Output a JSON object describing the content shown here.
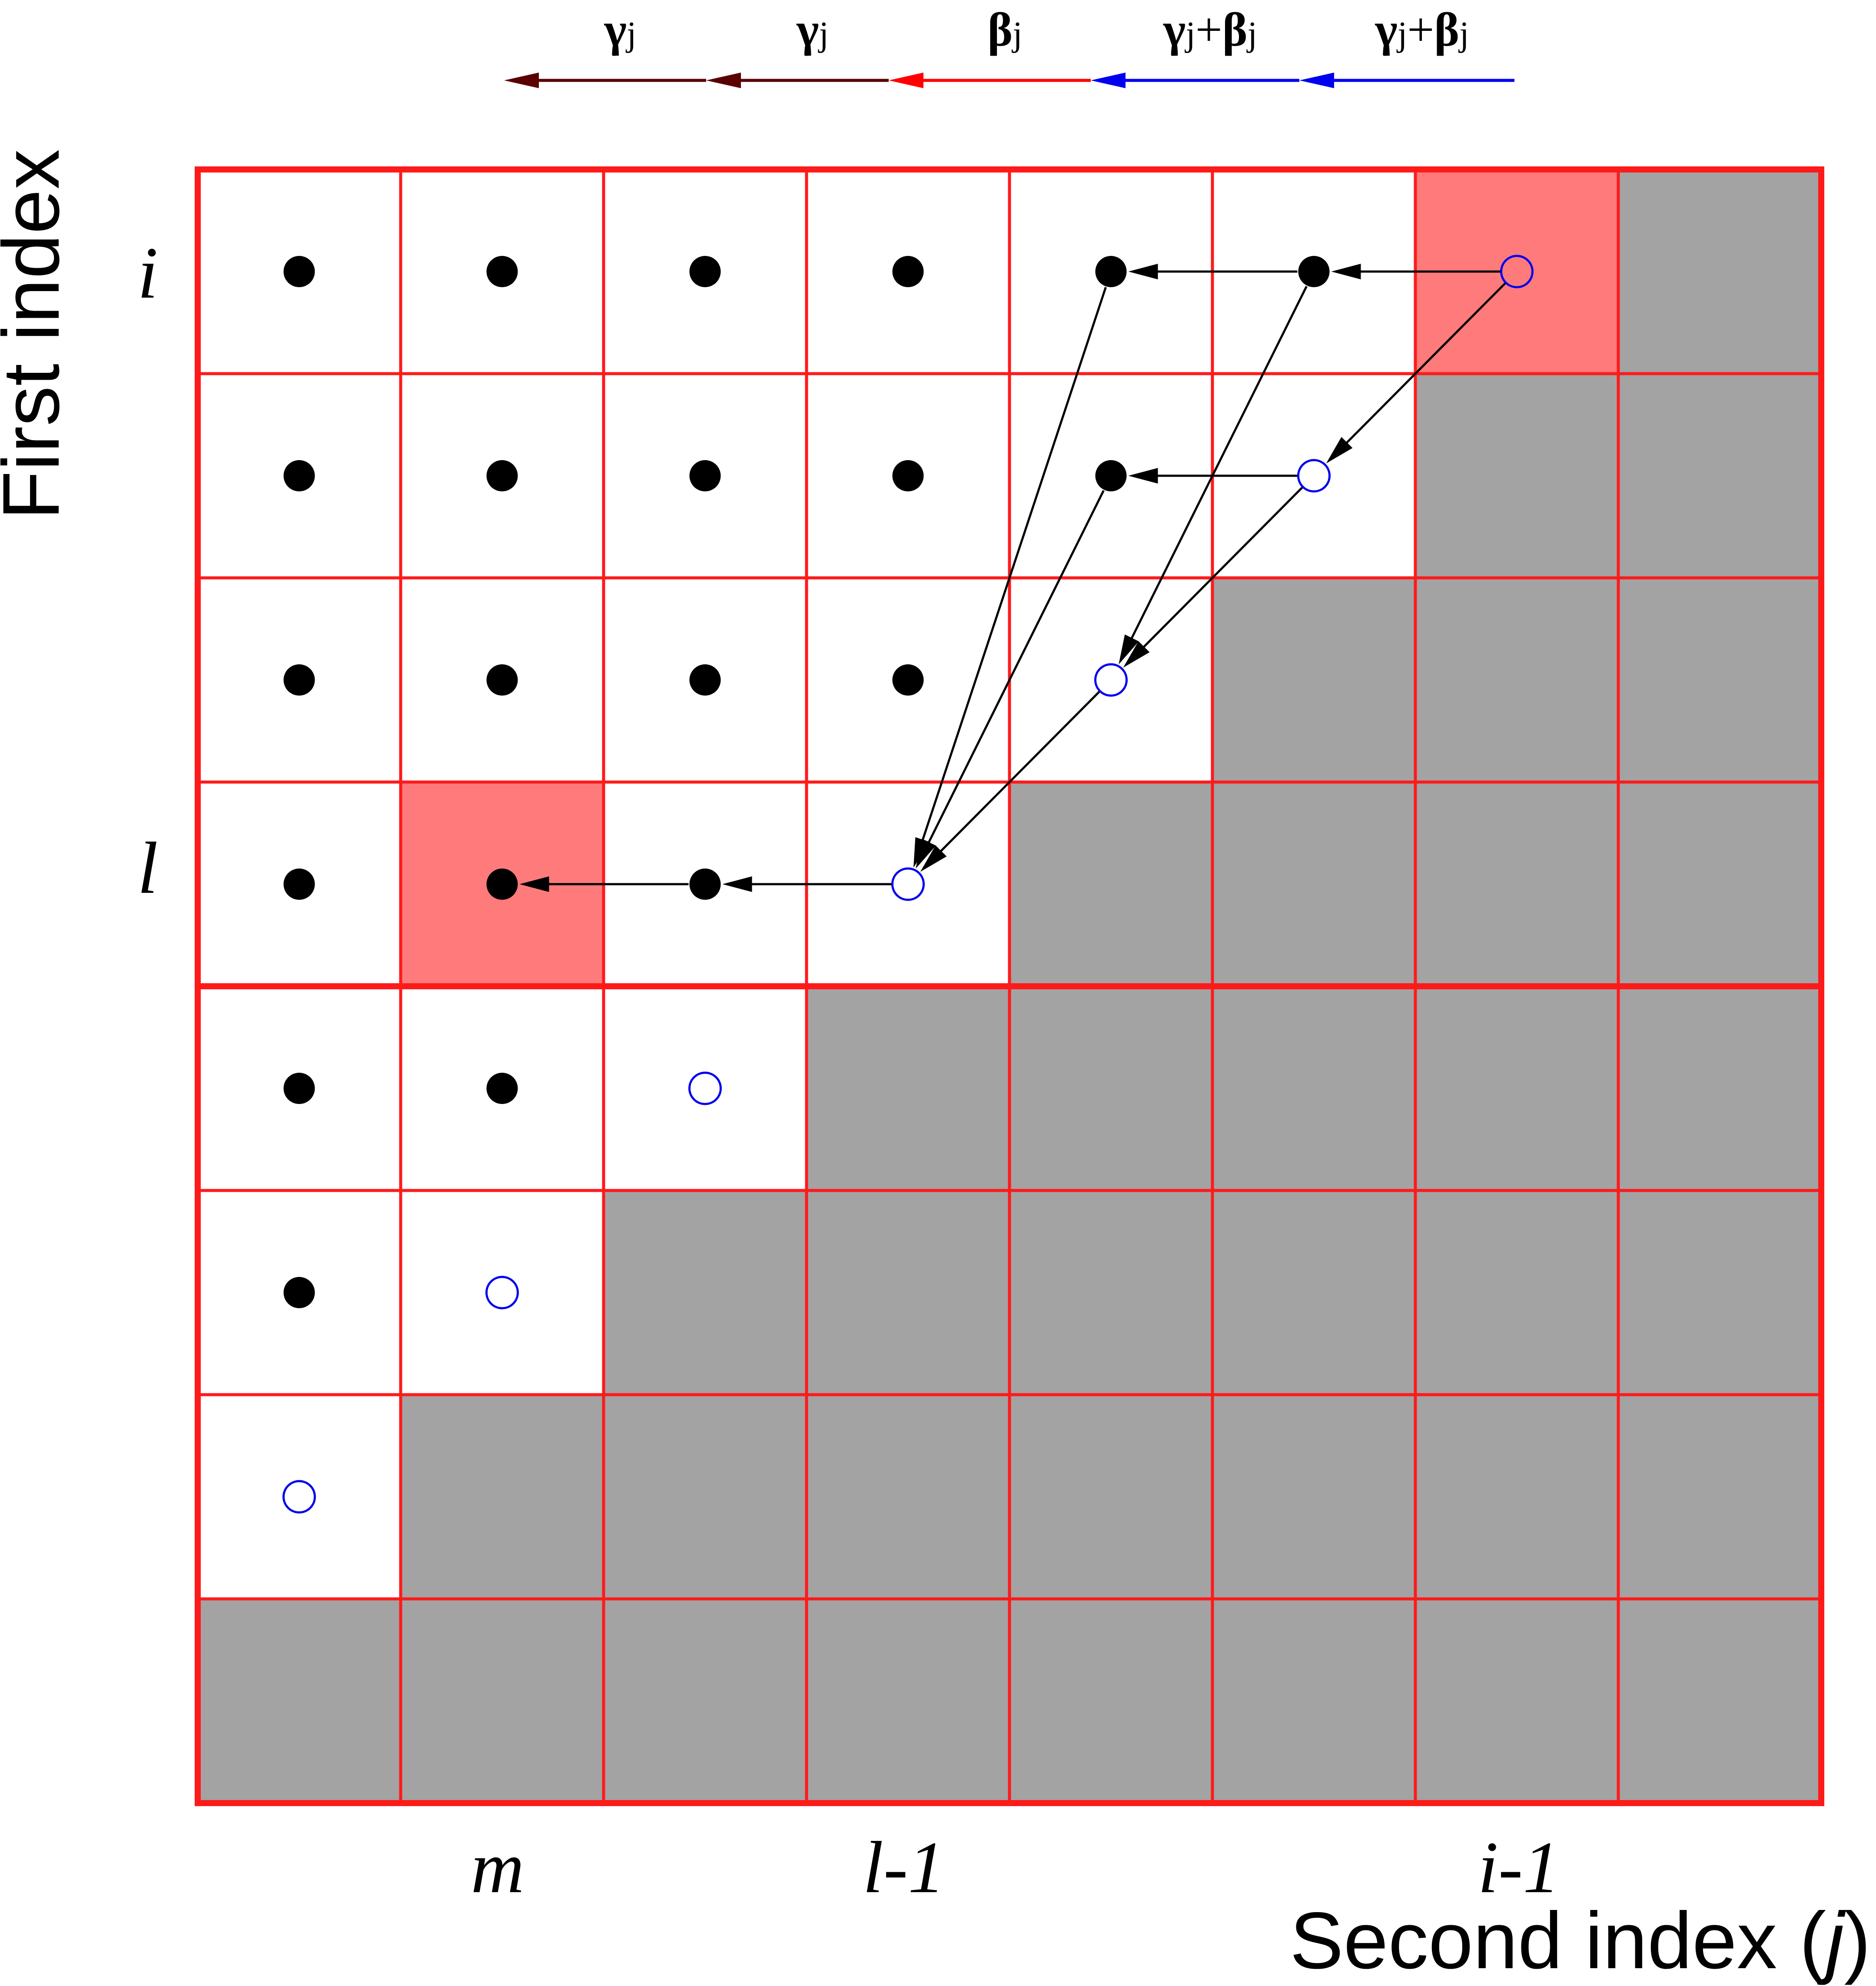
{
  "grid": {
    "rows": 8,
    "cols": 8,
    "colors": {
      "line": "#ff1a1a",
      "gray": "#a3a3a3",
      "highlight": "#ff7b7b",
      "white": "#ffffff",
      "filled_dot": "#000000",
      "open_dot": "#0000ee"
    },
    "cells": [
      [
        "filled",
        "filled",
        "filled",
        "filled",
        "filled",
        "filled",
        "open",
        "gray"
      ],
      [
        "filled",
        "filled",
        "filled",
        "filled",
        "filled",
        "open",
        "gray",
        "gray"
      ],
      [
        "filled",
        "filled",
        "filled",
        "filled",
        "open",
        "gray",
        "gray",
        "gray"
      ],
      [
        "filled",
        "filled",
        "filled",
        "open",
        "gray",
        "gray",
        "gray",
        "gray"
      ],
      [
        "filled",
        "filled",
        "open",
        "gray",
        "gray",
        "gray",
        "gray",
        "gray"
      ],
      [
        "filled",
        "open",
        "gray",
        "gray",
        "gray",
        "gray",
        "gray",
        "gray"
      ],
      [
        "open",
        "gray",
        "gray",
        "gray",
        "gray",
        "gray",
        "gray",
        "gray"
      ],
      [
        "gray",
        "gray",
        "gray",
        "gray",
        "gray",
        "gray",
        "gray",
        "gray"
      ]
    ],
    "highlighted_cells": [
      [
        0,
        6
      ],
      [
        3,
        1
      ]
    ],
    "dependency_arrows": [
      {
        "from": [
          0,
          6
        ],
        "to": [
          0,
          5
        ]
      },
      {
        "from": [
          0,
          5
        ],
        "to": [
          0,
          4
        ]
      },
      {
        "from": [
          0,
          6
        ],
        "to": [
          1,
          5
        ]
      },
      {
        "from": [
          1,
          5
        ],
        "to": [
          1,
          4
        ]
      },
      {
        "from": [
          1,
          5
        ],
        "to": [
          2,
          4
        ]
      },
      {
        "from": [
          0,
          5
        ],
        "to": [
          2,
          4
        ]
      },
      {
        "from": [
          0,
          4
        ],
        "to": [
          3,
          3
        ]
      },
      {
        "from": [
          1,
          4
        ],
        "to": [
          3,
          3
        ]
      },
      {
        "from": [
          2,
          4
        ],
        "to": [
          3,
          3
        ]
      },
      {
        "from": [
          3,
          3
        ],
        "to": [
          3,
          2
        ]
      },
      {
        "from": [
          3,
          2
        ],
        "to": [
          3,
          1
        ]
      }
    ]
  },
  "legend": [
    {
      "gamma": "γ",
      "j": "j",
      "plus": "",
      "beta": "",
      "j2": "",
      "color": "#5a0000"
    },
    {
      "gamma": "γ",
      "j": "j",
      "plus": "",
      "beta": "",
      "j2": "",
      "color": "#5a0000"
    },
    {
      "gamma": "",
      "j": "",
      "plus": "",
      "beta": "β",
      "j2": "j",
      "color": "#ff0000"
    },
    {
      "gamma": "γ",
      "j": "j",
      "plus": "+",
      "beta": "β",
      "j2": "j",
      "color": "#0000ee"
    },
    {
      "gamma": "γ",
      "j": "j",
      "plus": "+",
      "beta": "β",
      "j2": "j",
      "color": "#0000ee"
    }
  ],
  "row_labels": {
    "i": "i",
    "l": "l"
  },
  "col_labels": {
    "m": "m",
    "l_minus_1": "l-1",
    "i_minus_1": "i-1"
  },
  "axes": {
    "y_title": "First index",
    "x_title_main": "Second index (",
    "x_title_var": "j",
    "x_title_close": ")"
  }
}
